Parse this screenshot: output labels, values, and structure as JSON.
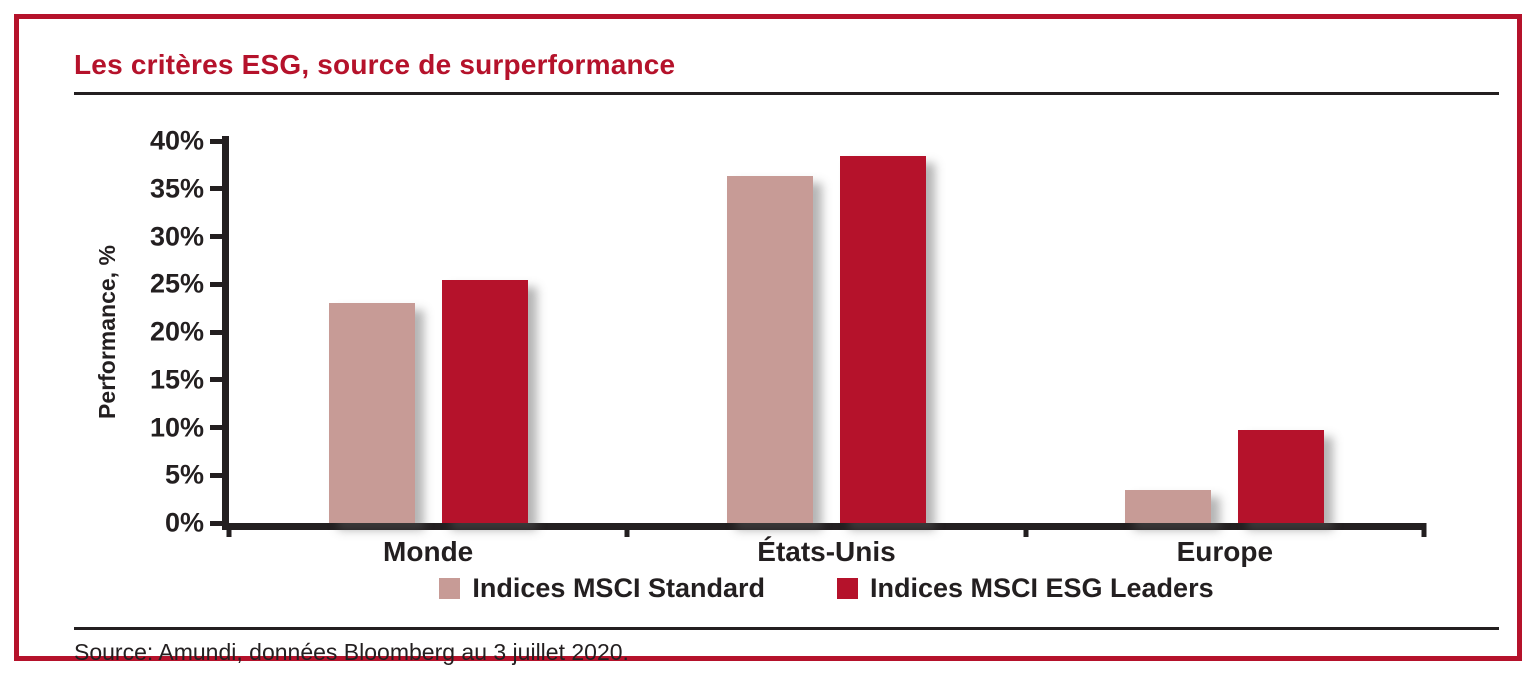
{
  "title": "Les critères ESG, source de surperformance",
  "source": "Source: Amundi, données Bloomberg au 3 juillet 2020.",
  "colors": {
    "accent_red": "#b5122b",
    "bar_standard": "#c79b96",
    "bar_esg": "#b5122b",
    "axis_black": "#231f20"
  },
  "chart_data": {
    "type": "bar",
    "categories": [
      "Monde",
      "États-Unis",
      "Europe"
    ],
    "series": [
      {
        "name": "Indices MSCI Standard",
        "color": "#c79b96",
        "values": [
          23.0,
          36.3,
          3.5
        ]
      },
      {
        "name": "Indices MSCI ESG Leaders",
        "color": "#b5122b",
        "values": [
          25.4,
          38.4,
          9.7
        ]
      }
    ],
    "title": "Les critères ESG, source de surperformance",
    "xlabel": "",
    "ylabel": "Performance, %",
    "ylim": [
      0,
      40
    ],
    "ytick_step": 5,
    "ytick_labels": [
      "0%",
      "5%",
      "10%",
      "15%",
      "20%",
      "25%",
      "30%",
      "35%",
      "40%"
    ],
    "grid": false,
    "legend_position": "bottom"
  }
}
